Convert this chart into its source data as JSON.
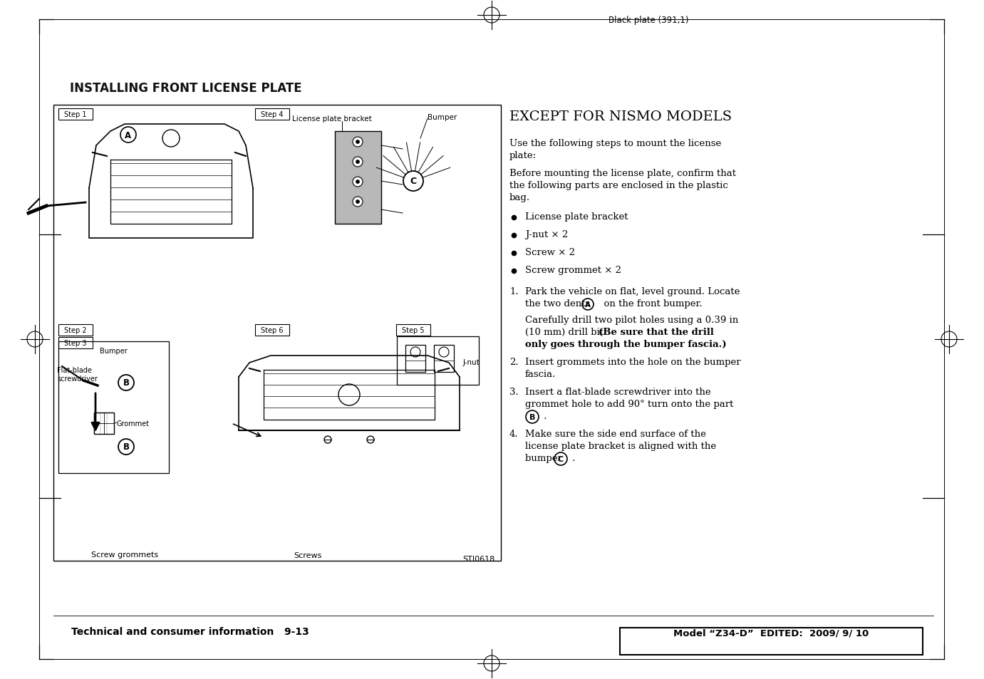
{
  "bg_color": "#ffffff",
  "page_header": "Black plate (391,1)",
  "section_title": "INSTALLING FRONT LICENSE PLATE",
  "right_title": "EXCEPT FOR NISMO MODELS",
  "bullet_items": [
    "License plate bracket",
    "J-nut × 2",
    "Screw × 2",
    "Screw grommet × 2"
  ],
  "footer_left": "Technical and consumer information   9-13",
  "footer_right": "Model “Z34-D”  EDITED:  2009/ 9/ 10",
  "diagram_labels": {
    "step1": "Step 1",
    "step2": "Step 2",
    "step3": "Step 3",
    "step4": "Step 4",
    "step5": "Step 5",
    "step6": "Step 6",
    "license_plate_bracket": "License plate bracket",
    "bumper": "Bumper",
    "flat_blade_screwdriver": "Flat-blade\nscrewdriver",
    "grommet": "Grommet",
    "screw_grommets": "Screw grommets",
    "screws": "Screws",
    "j_nut": "J-nut",
    "sti": "STI0618"
  }
}
